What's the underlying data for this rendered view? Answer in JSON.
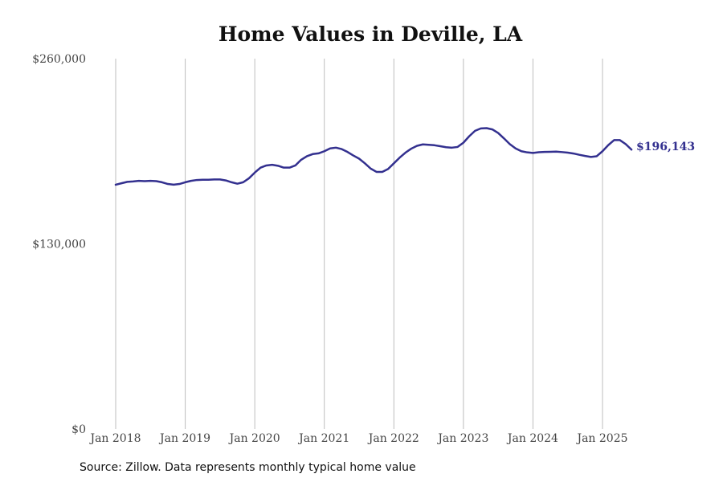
{
  "chart_data": {
    "type": "line",
    "title": "Home Values in Deville, LA",
    "source": "Source: Zillow. Data represents monthly typical home value",
    "xlabel": "",
    "ylabel": "",
    "ylim": [
      0,
      260000
    ],
    "y_ticks": [
      {
        "value": 0,
        "label": "$0"
      },
      {
        "value": 130000,
        "label": "$130,000"
      },
      {
        "value": 260000,
        "label": "$260,000"
      }
    ],
    "x_ticks": [
      "Jan 2018",
      "Jan 2019",
      "Jan 2020",
      "Jan 2021",
      "Jan 2022",
      "Jan 2023",
      "Jan 2024",
      "Jan 2025"
    ],
    "x_start": "2018-01",
    "grid": "vertical",
    "line_color": "#33308f",
    "end_label": "$196,143",
    "series": [
      {
        "values": [
          171500,
          172500,
          173500,
          173800,
          174200,
          174000,
          174200,
          174000,
          173200,
          172000,
          171500,
          172000,
          173200,
          174200,
          174800,
          175000,
          175000,
          175200,
          175200,
          174500,
          173200,
          172200,
          173200,
          176000,
          180000,
          183500,
          185000,
          185500,
          184800,
          183500,
          183500,
          185000,
          189000,
          191500,
          193000,
          193500,
          195000,
          197000,
          197500,
          196500,
          194500,
          192000,
          189800,
          186500,
          182800,
          180500,
          180500,
          182500,
          186500,
          190500,
          194000,
          196800,
          198800,
          199800,
          199500,
          199200,
          198500,
          197800,
          197500,
          198000,
          201000,
          205500,
          209300,
          211000,
          211200,
          210300,
          207800,
          204000,
          200000,
          197000,
          195000,
          194200,
          193800,
          194300,
          194500,
          194600,
          194700,
          194400,
          194000,
          193400,
          192500,
          191700,
          191000,
          191500,
          195000,
          199300,
          202800,
          202800,
          200000,
          196143
        ]
      }
    ]
  }
}
